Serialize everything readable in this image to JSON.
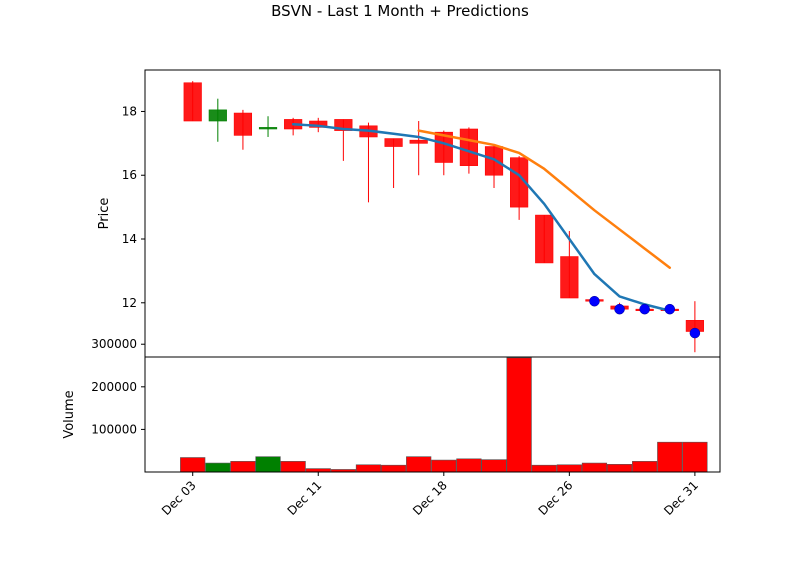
{
  "chart_data": {
    "type": "candlestick",
    "title": "BSVN - Last 1 Month + Predictions",
    "price_panel": {
      "ylabel": "Price",
      "ylim": [
        10.3,
        19.3
      ],
      "yticks": [
        12,
        14,
        16,
        18
      ],
      "candles": [
        {
          "x": 3,
          "open": 18.9,
          "high": 18.95,
          "low": 17.7,
          "close": 17.7,
          "color": "#ff0000"
        },
        {
          "x": 4,
          "open": 17.7,
          "high": 18.4,
          "low": 17.05,
          "close": 18.05,
          "color": "#008000"
        },
        {
          "x": 5,
          "open": 17.95,
          "high": 18.05,
          "low": 16.8,
          "close": 17.25,
          "color": "#ff0000"
        },
        {
          "x": 6,
          "open": 17.45,
          "high": 17.85,
          "low": 17.2,
          "close": 17.5,
          "color": "#008000"
        },
        {
          "x": 7,
          "open": 17.75,
          "high": 17.8,
          "low": 17.25,
          "close": 17.45,
          "color": "#ff0000"
        },
        {
          "x": 8,
          "open": 17.7,
          "high": 17.8,
          "low": 17.35,
          "close": 17.5,
          "color": "#ff0000"
        },
        {
          "x": 9,
          "open": 17.75,
          "high": 17.75,
          "low": 16.45,
          "close": 17.4,
          "color": "#ff0000"
        },
        {
          "x": 10,
          "open": 17.55,
          "high": 17.65,
          "low": 15.15,
          "close": 17.2,
          "color": "#ff0000"
        },
        {
          "x": 11,
          "open": 17.15,
          "high": 17.15,
          "low": 15.6,
          "close": 16.9,
          "color": "#ff0000"
        },
        {
          "x": 12,
          "open": 17.1,
          "high": 17.7,
          "low": 16.0,
          "close": 17.0,
          "color": "#ff0000"
        },
        {
          "x": 13,
          "open": 17.35,
          "high": 17.4,
          "low": 16.0,
          "close": 16.4,
          "color": "#ff0000"
        },
        {
          "x": 14,
          "open": 17.45,
          "high": 17.5,
          "low": 16.05,
          "close": 16.3,
          "color": "#ff0000"
        },
        {
          "x": 15,
          "open": 16.9,
          "high": 16.95,
          "low": 15.6,
          "close": 16.0,
          "color": "#ff0000"
        },
        {
          "x": 16,
          "open": 16.55,
          "high": 16.6,
          "low": 14.6,
          "close": 15.0,
          "color": "#ff0000"
        },
        {
          "x": 17,
          "open": 14.75,
          "high": 14.75,
          "low": 13.25,
          "close": 13.25,
          "color": "#ff0000"
        },
        {
          "x": 18,
          "open": 13.45,
          "high": 14.25,
          "low": 12.15,
          "close": 12.15,
          "color": "#ff0000"
        },
        {
          "x": 19,
          "open": 12.1,
          "high": 12.15,
          "low": 12.05,
          "close": 12.05,
          "color": "#ff0000"
        },
        {
          "x": 20,
          "open": 11.9,
          "high": 12.0,
          "low": 11.75,
          "close": 11.8,
          "color": "#ff0000"
        },
        {
          "x": 21,
          "open": 11.8,
          "high": 11.85,
          "low": 11.75,
          "close": 11.8,
          "color": "#ff0000"
        },
        {
          "x": 22,
          "open": 11.8,
          "high": 11.85,
          "low": 11.75,
          "close": 11.8,
          "color": "#ff0000"
        },
        {
          "x": 23,
          "open": 11.45,
          "high": 12.05,
          "low": 10.45,
          "close": 11.1,
          "color": "#ff0000"
        }
      ],
      "lines": [
        {
          "color": "#1f77b4",
          "points": [
            [
              7,
              17.6
            ],
            [
              8,
              17.55
            ],
            [
              9,
              17.45
            ],
            [
              10,
              17.4
            ],
            [
              11,
              17.3
            ],
            [
              12,
              17.2
            ],
            [
              13,
              17.0
            ],
            [
              14,
              16.75
            ],
            [
              15,
              16.5
            ],
            [
              16,
              16.0
            ],
            [
              17,
              15.1
            ],
            [
              18,
              14.0
            ],
            [
              19,
              12.9
            ],
            [
              20,
              12.2
            ],
            [
              21,
              11.95
            ],
            [
              22,
              11.75
            ]
          ]
        },
        {
          "color": "#ff7f0e",
          "points": [
            [
              12,
              17.4
            ],
            [
              13,
              17.25
            ],
            [
              14,
              17.1
            ],
            [
              15,
              16.95
            ],
            [
              16,
              16.7
            ],
            [
              17,
              16.2
            ],
            [
              18,
              15.55
            ],
            [
              19,
              14.9
            ],
            [
              20,
              14.3
            ],
            [
              21,
              13.7
            ],
            [
              22,
              13.1
            ]
          ]
        }
      ],
      "markers": {
        "color": "#0000ff",
        "points": [
          [
            19,
            12.05
          ],
          [
            20,
            11.8
          ],
          [
            21,
            11.8
          ],
          [
            22,
            11.8
          ],
          [
            23,
            11.05
          ]
        ]
      }
    },
    "volume_panel": {
      "ylabel": "Volume",
      "ylim": [
        0,
        270000
      ],
      "yticks": [
        100000,
        200000,
        300000
      ],
      "ytick_labels": [
        "100000",
        "200000",
        "300000"
      ],
      "bars": [
        {
          "x": 3,
          "value": 34000,
          "color": "#ff0000"
        },
        {
          "x": 4,
          "value": 21000,
          "color": "#008000"
        },
        {
          "x": 5,
          "value": 25000,
          "color": "#ff0000"
        },
        {
          "x": 6,
          "value": 36000,
          "color": "#008000"
        },
        {
          "x": 7,
          "value": 25000,
          "color": "#ff0000"
        },
        {
          "x": 8,
          "value": 8000,
          "color": "#ff0000"
        },
        {
          "x": 9,
          "value": 6000,
          "color": "#ff0000"
        },
        {
          "x": 10,
          "value": 17000,
          "color": "#ff0000"
        },
        {
          "x": 11,
          "value": 16000,
          "color": "#ff0000"
        },
        {
          "x": 12,
          "value": 36000,
          "color": "#ff0000"
        },
        {
          "x": 13,
          "value": 28000,
          "color": "#ff0000"
        },
        {
          "x": 14,
          "value": 31000,
          "color": "#ff0000"
        },
        {
          "x": 15,
          "value": 29000,
          "color": "#ff0000"
        },
        {
          "x": 16,
          "value": 268000,
          "color": "#ff0000"
        },
        {
          "x": 17,
          "value": 16000,
          "color": "#ff0000"
        },
        {
          "x": 18,
          "value": 17000,
          "color": "#ff0000"
        },
        {
          "x": 19,
          "value": 21000,
          "color": "#ff0000"
        },
        {
          "x": 20,
          "value": 18000,
          "color": "#ff0000"
        },
        {
          "x": 21,
          "value": 25000,
          "color": "#ff0000"
        },
        {
          "x": 22,
          "value": 70000,
          "color": "#ff0000"
        },
        {
          "x": 23,
          "value": 70000,
          "color": "#ff0000"
        }
      ]
    },
    "xaxis": {
      "xlim": [
        1.1,
        24.0
      ],
      "ticks": [
        {
          "x": 3,
          "label": "Dec 03"
        },
        {
          "x": 8,
          "label": "Dec 11"
        },
        {
          "x": 13,
          "label": "Dec 18"
        },
        {
          "x": 18,
          "label": "Dec 26"
        },
        {
          "x": 23,
          "label": "Dec 31"
        }
      ]
    }
  }
}
